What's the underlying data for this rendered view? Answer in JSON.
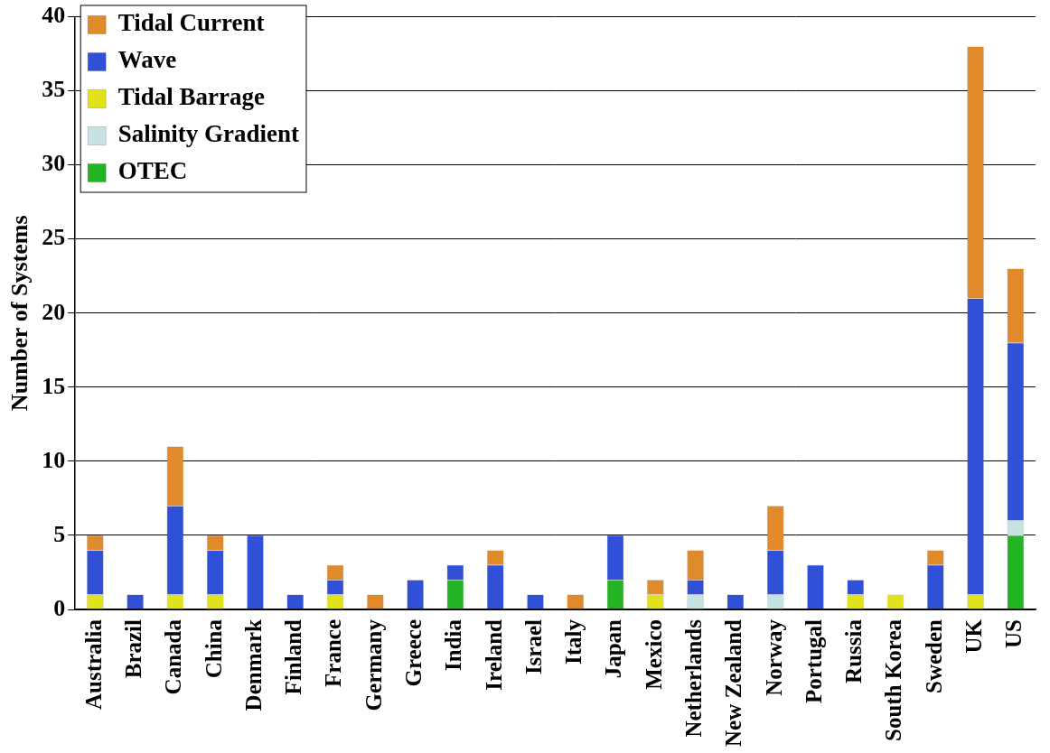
{
  "chart_data": {
    "type": "bar",
    "y_label": "Number of Systems",
    "categories": [
      "Australia",
      "Brazil",
      "Canada",
      "China",
      "Denmark",
      "Finland",
      "France",
      "Germany",
      "Greece",
      "India",
      "Ireland",
      "Israel",
      "Italy",
      "Japan",
      "Mexico",
      "Netherlands",
      "New Zealand",
      "Norway",
      "Portugal",
      "Russia",
      "South Korea",
      "Sweden",
      "UK",
      "US"
    ],
    "series": [
      {
        "name": "OTEC",
        "color": "#22b422",
        "values": [
          0,
          0,
          0,
          0,
          0,
          0,
          0,
          0,
          0,
          2,
          0,
          0,
          0,
          2,
          0,
          0,
          0,
          0,
          0,
          0,
          0,
          0,
          0,
          5
        ]
      },
      {
        "name": "Salinity Gradient",
        "color": "#c6e2e2",
        "values": [
          0,
          0,
          0,
          0,
          0,
          0,
          0,
          0,
          0,
          0,
          0,
          0,
          0,
          0,
          0,
          1,
          0,
          1,
          0,
          0,
          0,
          0,
          0,
          1
        ]
      },
      {
        "name": "Tidal Barrage",
        "color": "#e2e21a",
        "values": [
          1,
          0,
          1,
          1,
          0,
          0,
          1,
          0,
          0,
          0,
          0,
          0,
          0,
          0,
          1,
          0,
          0,
          0,
          0,
          1,
          1,
          0,
          1,
          0
        ]
      },
      {
        "name": "Wave",
        "color": "#3050d8",
        "values": [
          3,
          1,
          6,
          3,
          5,
          1,
          1,
          0,
          2,
          1,
          3,
          1,
          0,
          3,
          0,
          1,
          1,
          3,
          3,
          1,
          0,
          3,
          20,
          12
        ]
      },
      {
        "name": "Tidal Current",
        "color": "#e08a2c",
        "values": [
          1,
          0,
          4,
          1,
          0,
          0,
          1,
          1,
          0,
          0,
          1,
          0,
          1,
          0,
          1,
          2,
          0,
          3,
          0,
          0,
          0,
          1,
          17,
          5
        ]
      }
    ],
    "ylim": [
      0,
      40
    ],
    "yticks": [
      0,
      5,
      10,
      15,
      20,
      25,
      30,
      35,
      40
    ],
    "stacked": true,
    "grid": true,
    "legend": "top-left"
  }
}
